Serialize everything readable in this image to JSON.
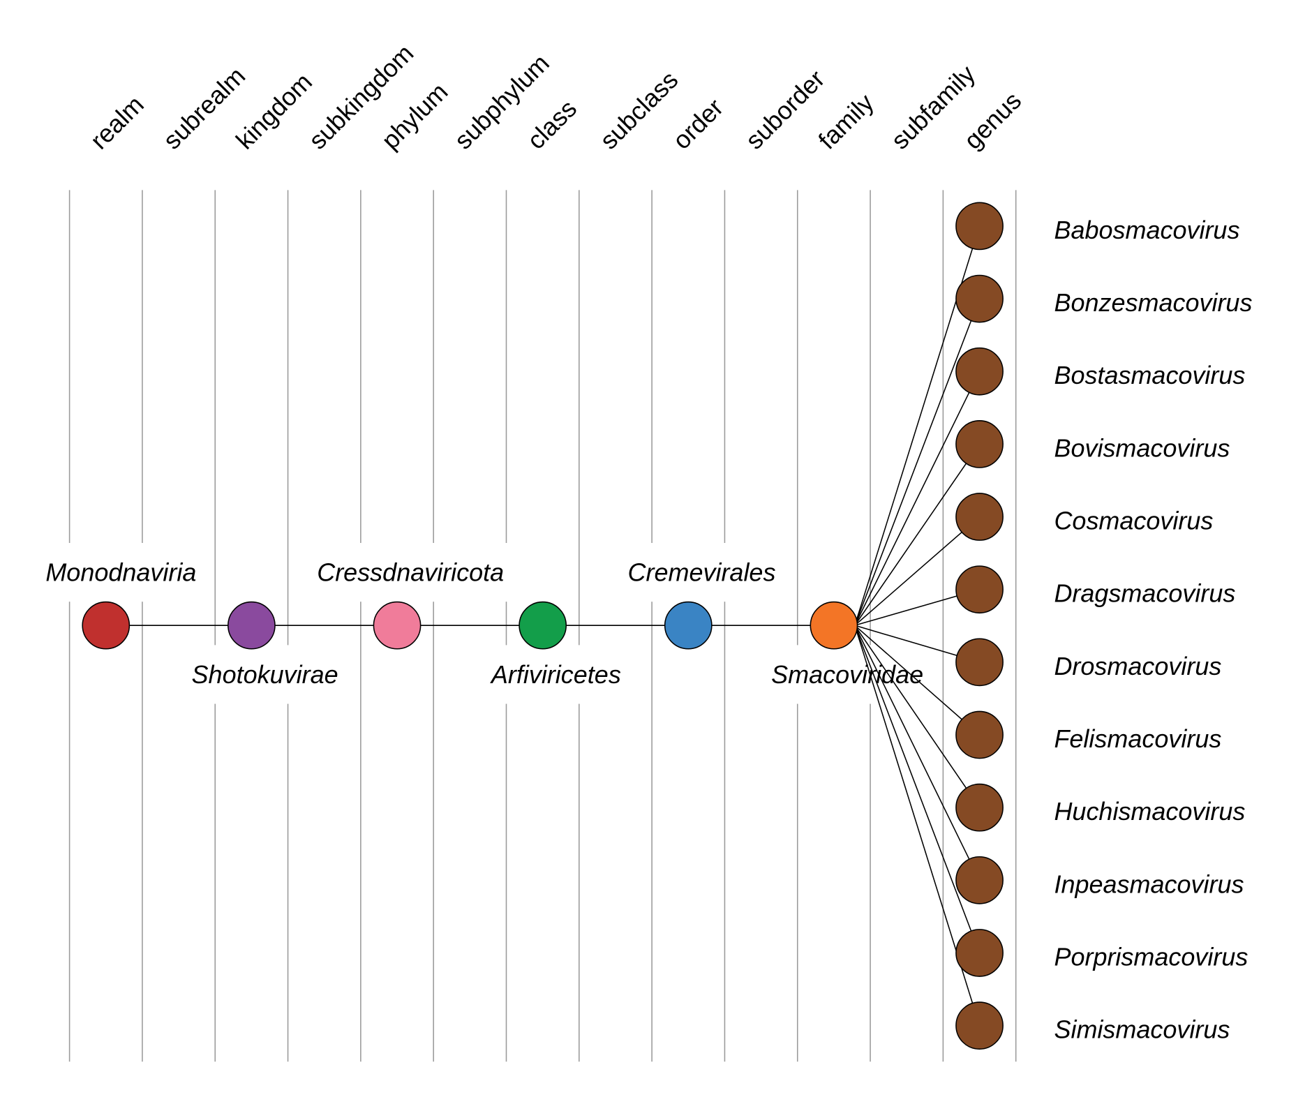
{
  "ranks": [
    "realm",
    "subrealm",
    "kingdom",
    "subkingdom",
    "phylum",
    "subphylum",
    "class",
    "subclass",
    "order",
    "suborder",
    "family",
    "subfamily",
    "genus"
  ],
  "lineage": [
    {
      "name": "Monodnaviria",
      "rank": "realm",
      "color": "#c0302e",
      "label_pos": "above"
    },
    {
      "name": "Shotokuvirae",
      "rank": "kingdom",
      "color": "#8a4a9e",
      "label_pos": "below"
    },
    {
      "name": "Cressdnaviricota",
      "rank": "phylum",
      "color": "#f07c9a",
      "label_pos": "above"
    },
    {
      "name": "Arfiviricetes",
      "rank": "class",
      "color": "#139e4a",
      "label_pos": "below"
    },
    {
      "name": "Cremevirales",
      "rank": "order",
      "color": "#3a84c4",
      "label_pos": "above"
    },
    {
      "name": "Smacoviridae",
      "rank": "family",
      "color": "#f37526",
      "label_pos": "below"
    }
  ],
  "genera": {
    "color": "#854a24",
    "names": [
      "Babosmacovirus",
      "Bonzesmacovirus",
      "Bostasmacovirus",
      "Bovismacovirus",
      "Cosmacovirus",
      "Dragsmacovirus",
      "Drosmacovirus",
      "Felismacovirus",
      "Huchismacovirus",
      "Inpeasmacovirus",
      "Porprismacovirus",
      "Simismacovirus"
    ]
  }
}
